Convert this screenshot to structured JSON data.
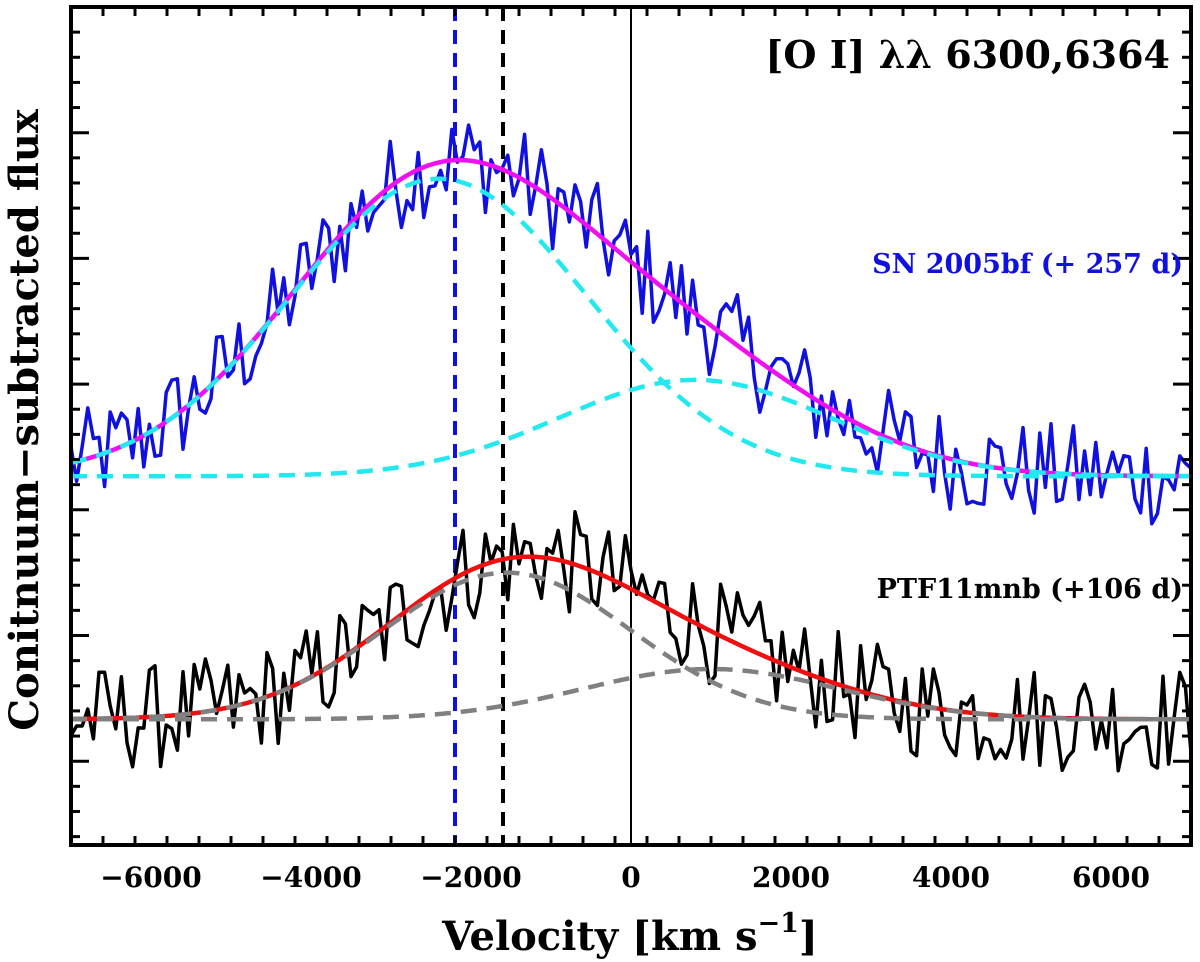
{
  "chart_data": {
    "type": "line",
    "title": "[O I] λλ 6300,6364",
    "xlabel": "Velocity [km s",
    "xlabel_unit_exponent": "−1",
    "xlabel_close": "]",
    "ylabel": "Conitnuum−subtracted flux",
    "xlim": [
      -7000,
      7000
    ],
    "ylim": [
      0,
      1
    ],
    "x_ticks": [
      -6000,
      -4000,
      -2000,
      0,
      2000,
      4000,
      6000
    ],
    "x_tick_labels": [
      "−6000",
      "−4000",
      "−2000",
      "0",
      "2000",
      "4000",
      "6000"
    ],
    "x_minor_step": 400,
    "y_major_ticks": [
      0.1,
      0.25,
      0.4,
      0.55,
      0.7,
      0.85,
      1.0
    ],
    "vertical_lines": [
      {
        "name": "zero-velocity-line",
        "x": 0,
        "color": "#000000",
        "style": "solid"
      },
      {
        "name": "ptf11mnb-centroid-line",
        "x": -1600,
        "color": "#000000",
        "style": "dashed"
      },
      {
        "name": "sn2005bf-centroid-line",
        "x": -2200,
        "color": "#1010e0",
        "style": "dashed"
      }
    ],
    "series": [
      {
        "name": "SN 2005bf (+ 257 d)",
        "label": "SN 2005bf (+ 257 d)",
        "color": "#1010e0",
        "baseline": 0.44,
        "components": [
          {
            "center": -2400,
            "sigma": 1850,
            "amp": 0.355
          },
          {
            "center": 800,
            "sigma": 1700,
            "amp": 0.115
          }
        ],
        "noise": 0.038
      },
      {
        "name": "PTF11mnb (+106 d)",
        "label": "PTF11mnb (+106 d)",
        "color": "#000000",
        "baseline": 0.15,
        "components": [
          {
            "center": -1550,
            "sigma": 1550,
            "amp": 0.175
          },
          {
            "center": 1000,
            "sigma": 1600,
            "amp": 0.06
          }
        ],
        "noise": 0.04
      }
    ],
    "fits": [
      {
        "name": "sn2005bf-total-fit",
        "of": 0,
        "color": "#ee10ee",
        "style": "solid"
      },
      {
        "name": "sn2005bf-component-fit",
        "of": 0,
        "color": "#22e8f0",
        "style": "dashed"
      },
      {
        "name": "ptf11mnb-total-fit",
        "of": 1,
        "color": "#ee1010",
        "style": "solid"
      },
      {
        "name": "ptf11mnb-component-fit",
        "of": 1,
        "color": "#808080",
        "style": "dashed"
      }
    ]
  }
}
